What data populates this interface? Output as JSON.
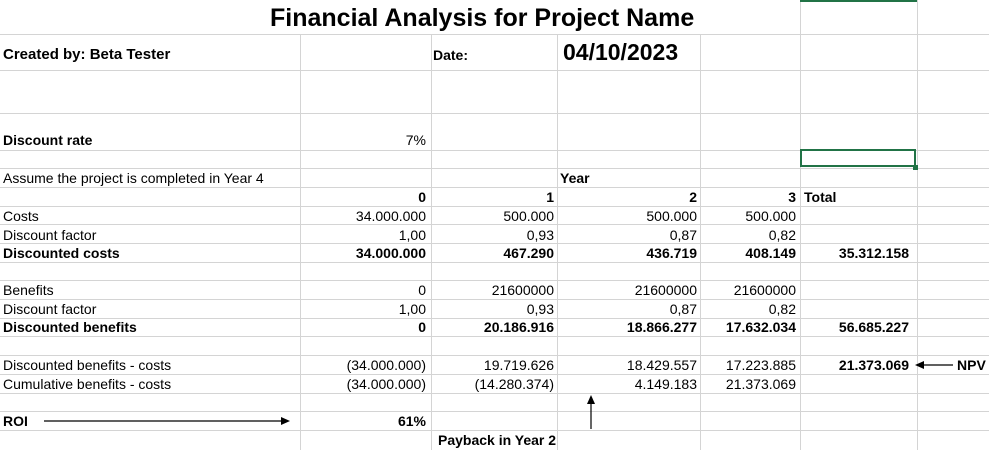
{
  "header": {
    "title": "Financial Analysis for Project Name",
    "created_by": "Created by: Beta Tester",
    "date_label": "Date:",
    "date_value": "04/10/2023"
  },
  "discount": {
    "label": "Discount rate",
    "value": "7%"
  },
  "assumption": "Assume the project is completed in Year 4",
  "year_header": "Year",
  "years": [
    "0",
    "1",
    "2",
    "3"
  ],
  "total_label": "Total",
  "costs": {
    "label": "Costs",
    "values": [
      "34.000.000",
      "500.000",
      "500.000",
      "500.000"
    ]
  },
  "cost_discount_factor": {
    "label": "Discount factor",
    "values": [
      "1,00",
      "0,93",
      "0,87",
      "0,82"
    ]
  },
  "discounted_costs": {
    "label": "Discounted costs",
    "values": [
      "34.000.000",
      "467.290",
      "436.719",
      "408.149"
    ],
    "total": "35.312.158"
  },
  "benefits": {
    "label": "Benefits",
    "values": [
      "0",
      "21600000",
      "21600000",
      "21600000"
    ]
  },
  "benefit_discount_factor": {
    "label": "Discount factor",
    "values": [
      "1,00",
      "0,93",
      "0,87",
      "0,82"
    ]
  },
  "discounted_benefits": {
    "label": "Discounted benefits",
    "values": [
      "0",
      "20.186.916",
      "18.866.277",
      "17.632.034"
    ],
    "total": "56.685.227"
  },
  "net": {
    "label": "Discounted benefits - costs",
    "values": [
      "(34.000.000)",
      "19.719.626",
      "18.429.557",
      "17.223.885"
    ],
    "total": "21.373.069",
    "npv_label": "NPV"
  },
  "cumulative": {
    "label": "Cumulative benefits - costs",
    "values": [
      "(34.000.000)",
      "(14.280.374)",
      "4.149.183",
      "21.373.069"
    ]
  },
  "roi": {
    "label": "ROI",
    "value": "61%"
  },
  "payback": "Payback in Year 2"
}
